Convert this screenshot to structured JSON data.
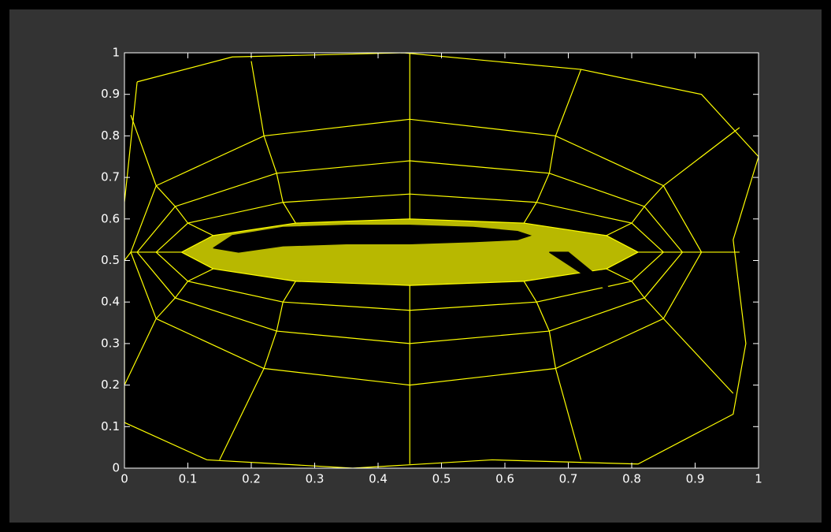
{
  "chart_data": {
    "type": "mesh",
    "xlim": [
      0,
      1
    ],
    "ylim": [
      0,
      1
    ],
    "xticks": [
      0,
      0.1,
      0.2,
      0.3,
      0.4,
      0.5,
      0.6,
      0.7,
      0.8,
      0.9,
      1
    ],
    "yticks": [
      0,
      0.1,
      0.2,
      0.3,
      0.4,
      0.5,
      0.6,
      0.7,
      0.8,
      0.9,
      1
    ],
    "background": "#000000",
    "axis_color": "#ffffff",
    "series": [
      {
        "color": "#ffff00",
        "fill": "#b8b800",
        "x": [
          0.81,
          0.76,
          0.63,
          0.45,
          0.27,
          0.14,
          0.09,
          0.14,
          0.27,
          0.45,
          0.63,
          0.76,
          0.81
        ],
        "y": [
          0.52,
          0.56,
          0.59,
          0.6,
          0.59,
          0.56,
          0.52,
          0.48,
          0.45,
          0.44,
          0.45,
          0.48,
          0.52
        ]
      },
      {
        "color": "#ffff00",
        "x": [
          0.85,
          0.8,
          0.65,
          0.45,
          0.25,
          0.1,
          0.05,
          0.1,
          0.25,
          0.45,
          0.65,
          0.8,
          0.85
        ],
        "y": [
          0.52,
          0.59,
          0.64,
          0.66,
          0.64,
          0.59,
          0.52,
          0.45,
          0.4,
          0.38,
          0.4,
          0.45,
          0.52
        ]
      },
      {
        "color": "#ffff00",
        "x": [
          0.88,
          0.82,
          0.67,
          0.45,
          0.24,
          0.08,
          0.02,
          0.08,
          0.24,
          0.45,
          0.67,
          0.82,
          0.88
        ],
        "y": [
          0.52,
          0.63,
          0.71,
          0.74,
          0.71,
          0.63,
          0.52,
          0.41,
          0.33,
          0.3,
          0.33,
          0.41,
          0.52
        ]
      },
      {
        "color": "#ffff00",
        "x": [
          0.91,
          0.85,
          0.68,
          0.45,
          0.22,
          0.05,
          0.01,
          0.05,
          0.22,
          0.45,
          0.68,
          0.85,
          0.91
        ],
        "y": [
          0.52,
          0.68,
          0.8,
          0.84,
          0.8,
          0.68,
          0.52,
          0.36,
          0.24,
          0.2,
          0.24,
          0.36,
          0.52
        ]
      },
      {
        "color": "#ffff00",
        "x": [
          0.02,
          0.17,
          0.44,
          0.72,
          0.91,
          1.0,
          0.96,
          0.98,
          0.96,
          0.81,
          0.58,
          0.36,
          0.13,
          0.0,
          0.0,
          0.0,
          0.02
        ],
        "y": [
          0.93,
          0.99,
          1.0,
          0.96,
          0.9,
          0.75,
          0.55,
          0.3,
          0.13,
          0.01,
          0.02,
          0.0,
          0.02,
          0.11,
          0.33,
          0.64,
          0.93
        ]
      },
      {
        "color": "#ffff00",
        "x": [
          0.81,
          0.85,
          0.88,
          0.91,
          0.97
        ],
        "y": [
          0.52,
          0.52,
          0.52,
          0.52,
          0.52
        ]
      },
      {
        "color": "#ffff00",
        "x": [
          0.76,
          0.8,
          0.82,
          0.85,
          0.97
        ],
        "y": [
          0.56,
          0.59,
          0.63,
          0.68,
          0.82
        ]
      },
      {
        "color": "#ffff00",
        "x": [
          0.63,
          0.65,
          0.67,
          0.68,
          0.72
        ],
        "y": [
          0.59,
          0.64,
          0.71,
          0.8,
          0.96
        ]
      },
      {
        "color": "#ffff00",
        "x": [
          0.45,
          0.45,
          0.45,
          0.45,
          0.45
        ],
        "y": [
          0.6,
          0.66,
          0.74,
          0.84,
          1.0
        ]
      },
      {
        "color": "#ffff00",
        "x": [
          0.27,
          0.25,
          0.24,
          0.22,
          0.2
        ],
        "y": [
          0.59,
          0.64,
          0.71,
          0.8,
          0.98
        ]
      },
      {
        "color": "#ffff00",
        "x": [
          0.14,
          0.1,
          0.08,
          0.05,
          0.01
        ],
        "y": [
          0.56,
          0.59,
          0.63,
          0.68,
          0.85
        ]
      },
      {
        "color": "#ffff00",
        "x": [
          0.09,
          0.05,
          0.02,
          0.01,
          0.0
        ],
        "y": [
          0.52,
          0.52,
          0.52,
          0.52,
          0.5
        ]
      },
      {
        "color": "#ffff00",
        "x": [
          0.14,
          0.1,
          0.08,
          0.05,
          0.0
        ],
        "y": [
          0.48,
          0.45,
          0.41,
          0.36,
          0.2
        ]
      },
      {
        "color": "#ffff00",
        "x": [
          0.27,
          0.25,
          0.24,
          0.22,
          0.15
        ],
        "y": [
          0.45,
          0.4,
          0.33,
          0.24,
          0.02
        ]
      },
      {
        "color": "#ffff00",
        "x": [
          0.45,
          0.45,
          0.45,
          0.45,
          0.45
        ],
        "y": [
          0.44,
          0.38,
          0.3,
          0.2,
          0.01
        ]
      },
      {
        "color": "#ffff00",
        "x": [
          0.63,
          0.65,
          0.67,
          0.68,
          0.72
        ],
        "y": [
          0.45,
          0.4,
          0.33,
          0.24,
          0.02
        ]
      },
      {
        "color": "#ffff00",
        "x": [
          0.76,
          0.8,
          0.82,
          0.85,
          0.96
        ],
        "y": [
          0.48,
          0.45,
          0.41,
          0.36,
          0.18
        ]
      },
      {
        "color": "#000000",
        "fill": "#000000",
        "x": [
          0.14,
          0.17,
          0.25,
          0.35,
          0.45,
          0.55,
          0.62,
          0.64,
          0.62,
          0.55,
          0.45,
          0.35,
          0.25,
          0.18,
          0.14
        ],
        "y": [
          0.53,
          0.56,
          0.58,
          0.585,
          0.585,
          0.58,
          0.57,
          0.56,
          0.55,
          0.545,
          0.54,
          0.54,
          0.535,
          0.52,
          0.53
        ]
      },
      {
        "color": "#000000",
        "fill": "#000000",
        "x": [
          0.67,
          0.7,
          0.74,
          0.78,
          0.72,
          0.68,
          0.67
        ],
        "y": [
          0.52,
          0.52,
          0.47,
          0.41,
          0.47,
          0.51,
          0.52
        ]
      }
    ]
  }
}
